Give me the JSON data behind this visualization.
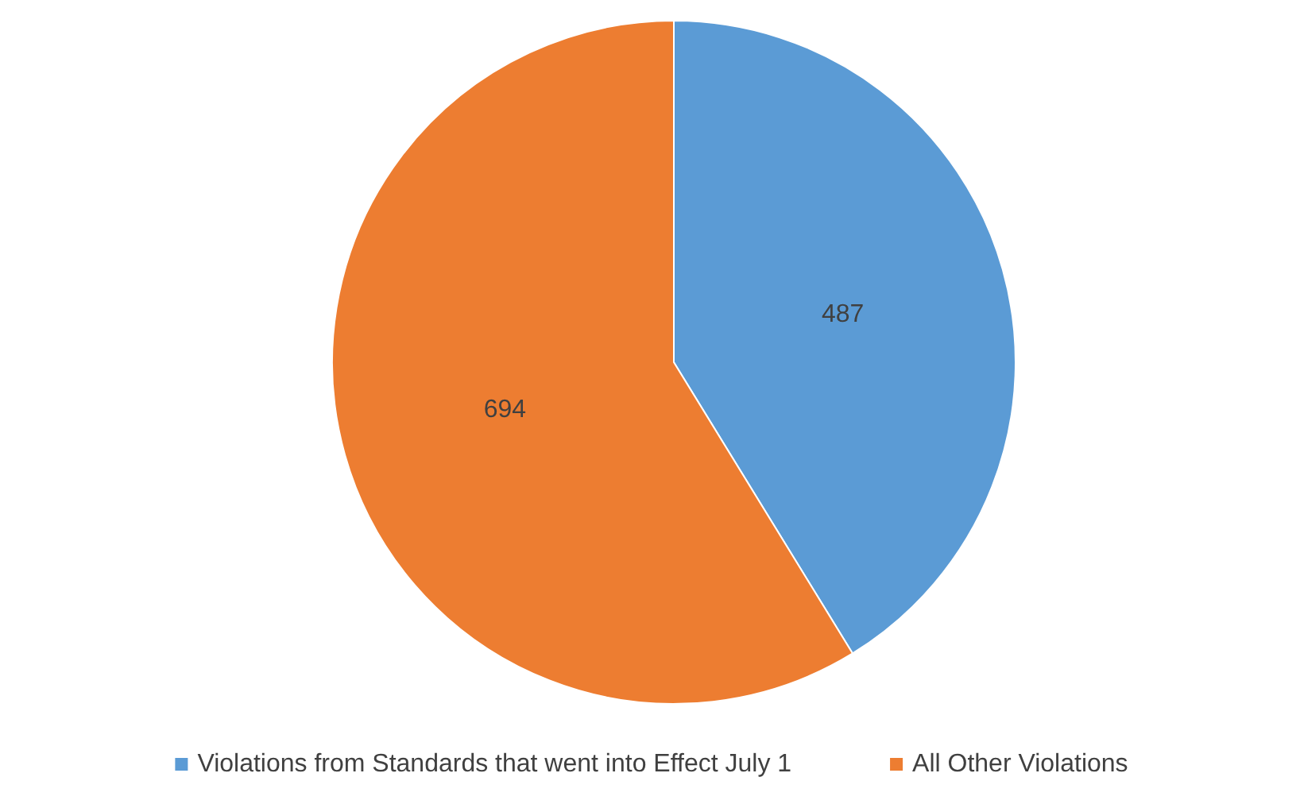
{
  "chart_data": {
    "type": "pie",
    "categories": [
      "Violations from Standards that went into Effect July 1",
      "All Other Violations"
    ],
    "values": [
      487,
      694
    ],
    "colors": [
      "#5b9bd5",
      "#ed7d31"
    ],
    "data_labels": true,
    "legend": "bottom"
  }
}
